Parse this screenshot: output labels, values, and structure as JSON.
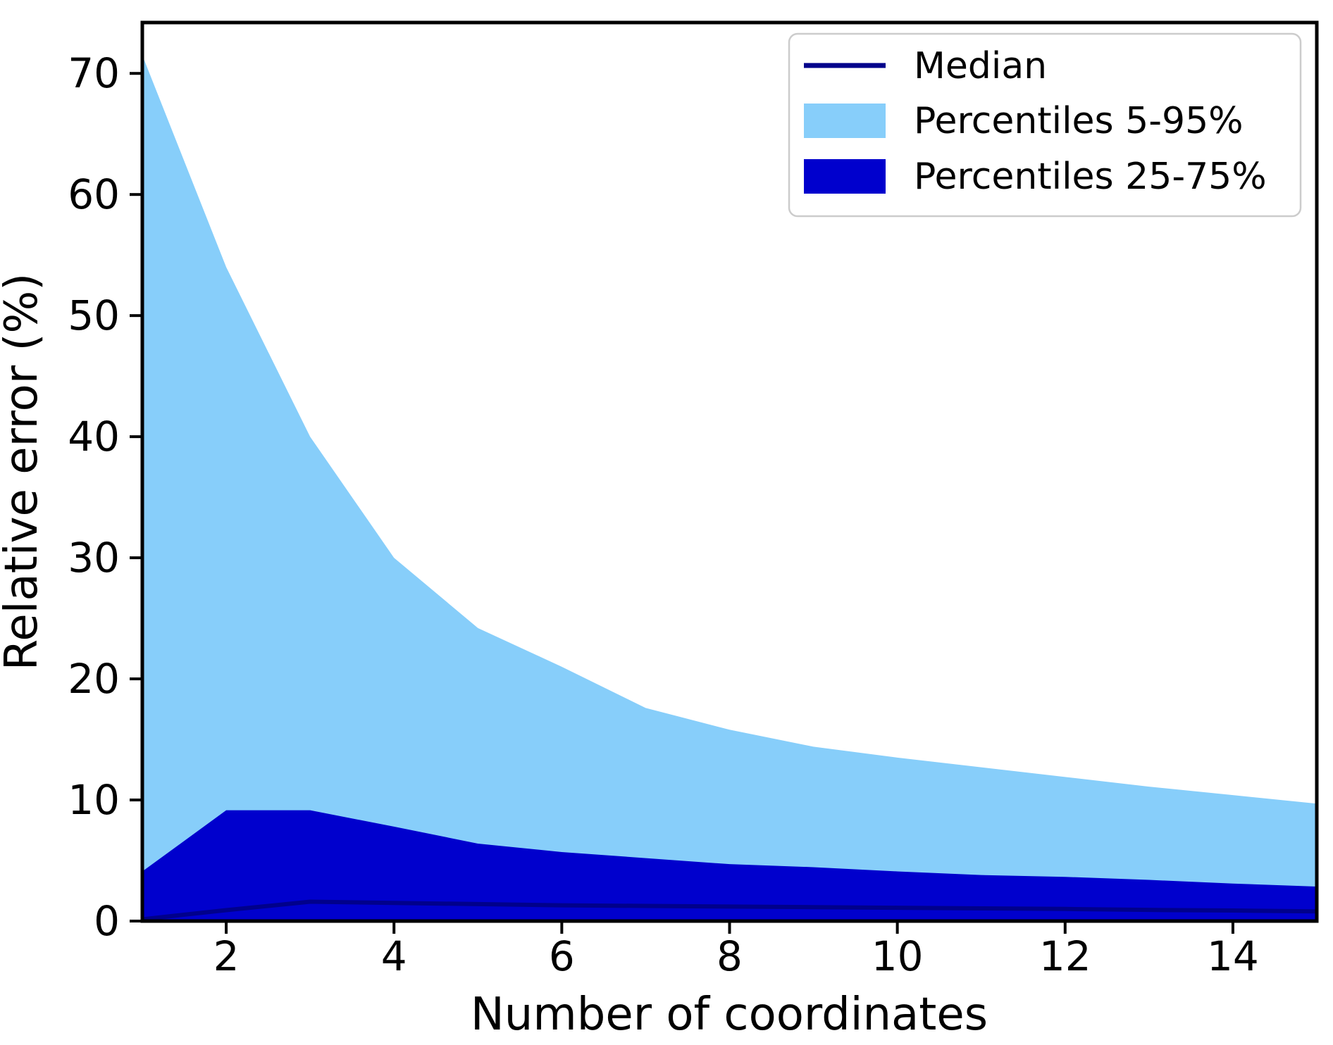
{
  "chart_data": {
    "type": "area",
    "title": "",
    "xlabel": "Number of coordinates",
    "ylabel": "Relative error (%)",
    "xlim": [
      1,
      15
    ],
    "ylim": [
      0,
      74.2
    ],
    "x_ticks": [
      2,
      4,
      6,
      8,
      10,
      12,
      14
    ],
    "y_ticks": [
      0,
      10,
      20,
      30,
      40,
      50,
      60,
      70
    ],
    "grid": false,
    "legend_position": "upper right",
    "x": [
      1,
      2,
      3,
      4,
      5,
      6,
      7,
      8,
      9,
      10,
      11,
      12,
      13,
      14,
      15
    ],
    "series": [
      {
        "name": "Percentiles 5-95%",
        "type": "band",
        "color": "#87CEFA",
        "upper": [
          71.5,
          54,
          40,
          30,
          24.2,
          21,
          17.6,
          15.8,
          14.4,
          13.5,
          12.7,
          11.9,
          11.1,
          10.4,
          9.7
        ],
        "lower": [
          0.05,
          0.05,
          0.05,
          0.05,
          0.05,
          0.05,
          0.05,
          0.05,
          0.05,
          0.05,
          0.05,
          0.05,
          0.05,
          0.05,
          0.05
        ]
      },
      {
        "name": "Percentiles 25-75%",
        "type": "band",
        "color": "#0000CD",
        "upper": [
          4.1,
          9.15,
          9.15,
          7.8,
          6.4,
          5.7,
          5.2,
          4.7,
          4.45,
          4.1,
          3.8,
          3.65,
          3.4,
          3.1,
          2.85
        ],
        "lower": [
          0.1,
          0.1,
          0.1,
          0.1,
          0.1,
          0.1,
          0.1,
          0.1,
          0.1,
          0.1,
          0.1,
          0.1,
          0.1,
          0.1,
          0.1
        ]
      },
      {
        "name": "Median",
        "type": "line",
        "color": "#00008B",
        "values": [
          0.15,
          0.9,
          1.6,
          1.5,
          1.4,
          1.3,
          1.25,
          1.2,
          1.15,
          1.1,
          1.05,
          1.0,
          0.92,
          0.87,
          0.8
        ]
      }
    ]
  },
  "legend": {
    "items": [
      {
        "label": "Median",
        "swatch": "line",
        "color": "#00008B"
      },
      {
        "label": "Percentiles 5-95%",
        "swatch": "rect",
        "color": "#87CEFA"
      },
      {
        "label": "Percentiles 25-75%",
        "swatch": "rect",
        "color": "#0000CD"
      }
    ]
  },
  "axes": {
    "xlabel": "Number of coordinates",
    "ylabel": "Relative error (%)",
    "spine_color": "#000000"
  }
}
